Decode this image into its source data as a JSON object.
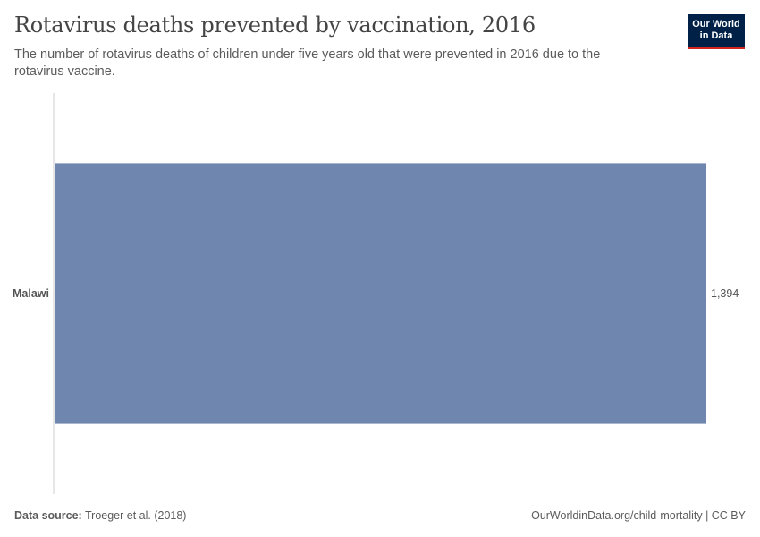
{
  "header": {
    "title": "Rotavirus deaths prevented by vaccination, 2016",
    "subtitle": "The number of rotavirus deaths of children under five years old that were prevented in 2016 due to the rotavirus vaccine."
  },
  "logo": {
    "line1": "Our World",
    "line2": "in Data",
    "bg_color": "#002147",
    "accent_color": "#ce261e"
  },
  "footer": {
    "source_label": "Data source:",
    "source_value": "Troeger et al. (2018)",
    "link": "OurWorldinData.org/child-mortality | CC BY"
  },
  "chart_data": {
    "type": "bar",
    "orientation": "horizontal",
    "categories": [
      "Malawi"
    ],
    "values": [
      1394
    ],
    "value_labels": [
      "1,394"
    ],
    "xlim": [
      0,
      1394
    ],
    "grid": false,
    "bar_color": "#6f87ae"
  }
}
